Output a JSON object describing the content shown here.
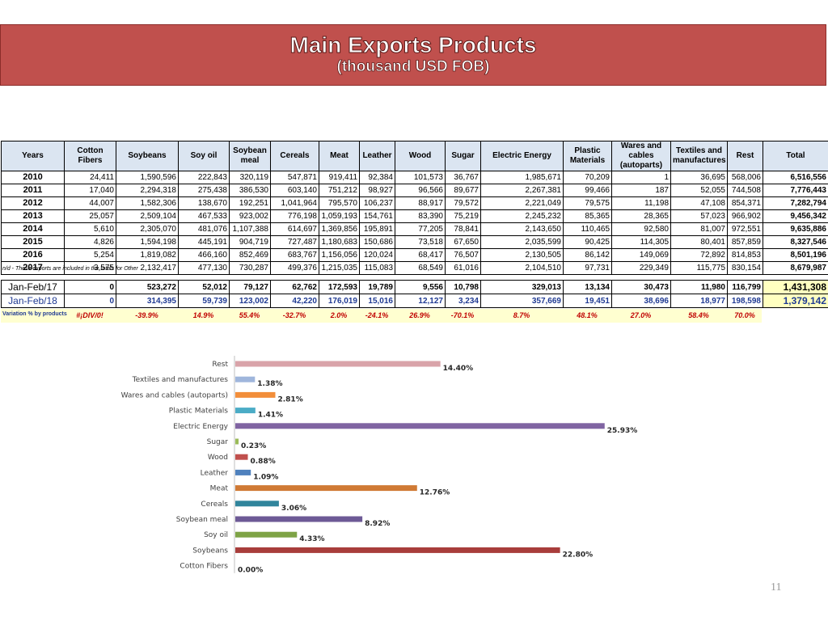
{
  "header": {
    "title": "Main Exports Products",
    "subtitle": "(thousand USD FOB)"
  },
  "table": {
    "columns": [
      "Years",
      "Cotton Fibers",
      "Soybeans",
      "Soy oil",
      "Soybean meal",
      "Cereals",
      "Meat",
      "Leather",
      "Wood",
      "Sugar",
      "Electric Energy",
      "Plastic Materials",
      "Wares and cables (autoparts)",
      "Textiles and manufactures",
      "Rest",
      "Total"
    ],
    "rows": [
      [
        "2010",
        "24,411",
        "1,590,596",
        "222,843",
        "320,119",
        "547,871",
        "919,411",
        "92,384",
        "101,573",
        "36,767",
        "1,985,671",
        "70,209",
        "1",
        "36,695",
        "568,006",
        "6,516,556"
      ],
      [
        "2011",
        "17,040",
        "2,294,318",
        "275,438",
        "386,530",
        "603,140",
        "751,212",
        "98,927",
        "96,566",
        "89,677",
        "2,267,381",
        "99,466",
        "187",
        "52,055",
        "744,508",
        "7,776,443"
      ],
      [
        "2012",
        "44,007",
        "1,582,306",
        "138,670",
        "192,251",
        "1,041,964",
        "795,570",
        "106,237",
        "88,917",
        "79,572",
        "2,221,049",
        "79,575",
        "11,198",
        "47,108",
        "854,371",
        "7,282,794"
      ],
      [
        "2013",
        "25,057",
        "2,509,104",
        "467,533",
        "923,002",
        "776,198",
        "1,059,193",
        "154,761",
        "83,390",
        "75,219",
        "2,245,232",
        "85,365",
        "28,365",
        "57,023",
        "966,902",
        "9,456,342"
      ],
      [
        "2014",
        "5,610",
        "2,305,070",
        "481,076",
        "1,107,388",
        "614,697",
        "1,369,856",
        "195,891",
        "77,205",
        "78,841",
        "2,143,650",
        "110,465",
        "92,580",
        "81,007",
        "972,551",
        "9,635,886"
      ],
      [
        "2015",
        "4,826",
        "1,594,198",
        "445,191",
        "904,719",
        "727,487",
        "1,180,683",
        "150,686",
        "73,518",
        "67,650",
        "2,035,599",
        "90,425",
        "114,305",
        "80,401",
        "857,859",
        "8,327,546"
      ],
      [
        "2016",
        "5,254",
        "1,819,082",
        "466,160",
        "852,469",
        "683,767",
        "1,156,056",
        "120,024",
        "68,417",
        "76,507",
        "2,130,505",
        "86,142",
        "149,069",
        "72,892",
        "814,853",
        "8,501,196"
      ],
      [
        "2017",
        "3,575",
        "2,132,417",
        "477,130",
        "730,287",
        "499,376",
        "1,215,035",
        "115,083",
        "68,549",
        "61,016",
        "2,104,510",
        "97,731",
        "229,349",
        "115,775",
        "830,154",
        "8,679,987"
      ]
    ],
    "note": "n/d - These exports are included in the totals for Other",
    "jan_feb": [
      [
        "Jan-Feb/17",
        "0",
        "523,272",
        "52,012",
        "79,127",
        "62,762",
        "172,593",
        "19,789",
        "9,556",
        "10,798",
        "329,013",
        "13,134",
        "30,473",
        "11,980",
        "116,799",
        "1,431,308"
      ],
      [
        "Jan-Feb/18",
        "0",
        "314,395",
        "59,739",
        "123,002",
        "42,220",
        "176,019",
        "15,016",
        "12,127",
        "3,234",
        "357,669",
        "19,451",
        "38,696",
        "18,977",
        "198,598",
        "1,379,142"
      ]
    ],
    "variation_label": "Variation % by products",
    "variation": [
      "#¡DIV/0!",
      "-39.9%",
      "14.9%",
      "55.4%",
      "-32.7%",
      "2.0%",
      "-24.1%",
      "26.9%",
      "-70.1%",
      "8.7%",
      "48.1%",
      "27.0%",
      "58.4%",
      "70.0%"
    ]
  },
  "chart_data": {
    "type": "bar",
    "orientation": "horizontal",
    "categories": [
      "Rest",
      "Textiles and  manufactures",
      "Wares and cables (autoparts)",
      "Plastic Materials",
      "Electric Energy",
      "Sugar",
      "Wood",
      "Leather",
      "Meat",
      "Cereals",
      "Soybean meal",
      "Soy oil",
      "Soybeans",
      "Cotton Fibers"
    ],
    "values": [
      14.4,
      1.38,
      2.81,
      1.41,
      25.93,
      0.23,
      0.88,
      1.09,
      12.76,
      3.06,
      8.92,
      4.33,
      22.8,
      0.0
    ],
    "labels": [
      "14.40%",
      "1.38%",
      "2.81%",
      "1.41%",
      "25.93%",
      "0.23%",
      "0.88%",
      "1.09%",
      "12.76%",
      "3.06%",
      "8.92%",
      "4.33%",
      "22.80%",
      "0.00%"
    ],
    "colors": [
      "#d9a3a9",
      "#9fb6dc",
      "#f28e3a",
      "#4bacc6",
      "#8064a2",
      "#9bbb59",
      "#c0504d",
      "#4f81bd",
      "#d07a35",
      "#31859c",
      "#6d5a96",
      "#7ea346",
      "#a83d3b",
      "#3c6aa8"
    ],
    "title": "",
    "xlabel": "",
    "ylabel": "",
    "xlim": [
      0,
      26
    ],
    "grid": false,
    "legend": "none"
  },
  "page_number": "11"
}
